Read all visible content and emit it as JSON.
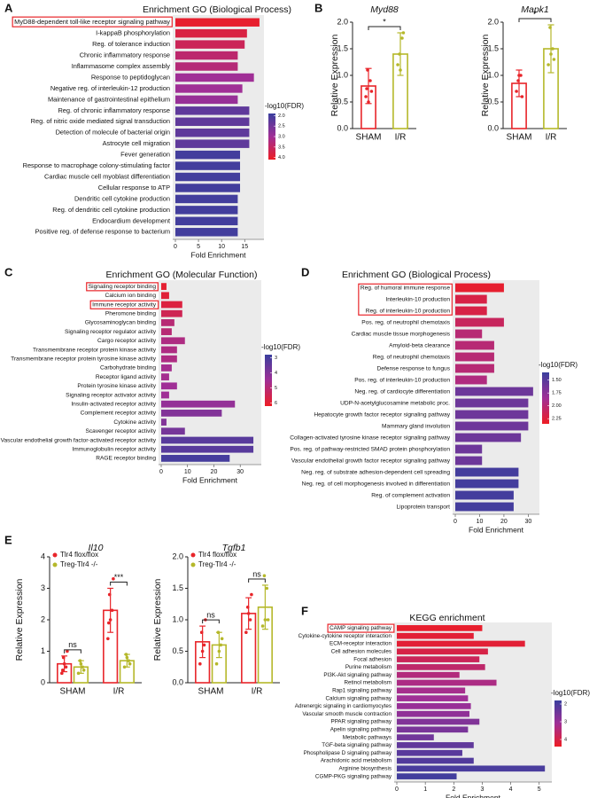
{
  "chart_data": [
    {
      "type": "hbar",
      "panel": "A",
      "title": "Enrichment GO (Biological Process)",
      "categories": [
        "MyD88-dependent toll-like receptor signaling pathway",
        "I-kappaB phosphorylation",
        "Reg. of tolerance induction",
        "Chronic inflammatory response",
        "Inflammasome complex assembly",
        "Response to peptidoglycan",
        "Negative reg. of interleukin-12 production",
        "Maintenance of gastrointestinal epithelium",
        "Reg. of chronic inflammatory response",
        "Reg. of nitric oxide mediated signal transduction",
        "Detection of molecule of bacterial origin",
        "Astrocyte cell migration",
        "Fever generation",
        "Response to macrophage colony-stimulating factor",
        "Cardiac muscle cell myoblast differentiation",
        "Cellular response to ATP",
        "Dendritic cell cytokine production",
        "Reg. of dendritic cell cytokine production",
        "Endocardium development",
        "Positive reg. of defense response to bacterium"
      ],
      "values": [
        18.2,
        15.5,
        15,
        13.5,
        13.5,
        17,
        14.5,
        13.5,
        16,
        16,
        16,
        16,
        14,
        14,
        14,
        14,
        13.5,
        13.5,
        13.5,
        13.5
      ],
      "color_values": [
        4.0,
        3.8,
        3.6,
        3.4,
        3.3,
        3.0,
        3.0,
        2.9,
        2.3,
        2.3,
        2.3,
        2.3,
        2.0,
        2.0,
        2.0,
        2.0,
        2.0,
        2.0,
        2.0,
        2.0
      ],
      "xlim": [
        0,
        18.6
      ],
      "xticks": [
        0,
        5,
        10,
        15
      ],
      "xlabel": "Fold Enrichment",
      "colorscale": [
        "#3a3f9e",
        "#a02f96",
        "#ee1d24"
      ],
      "colorbar": {
        "title": "-log10(FDR)",
        "lim": [
          1.9,
          4.1
        ],
        "ticks": [
          {
            "value": 2,
            "label": "2.0"
          },
          {
            "value": 2.5,
            "label": "2.5"
          },
          {
            "value": 3,
            "label": "3.0"
          },
          {
            "value": 3.5,
            "label": "3.5"
          },
          {
            "value": 4,
            "label": "4.0"
          }
        ]
      },
      "highlight": [
        0
      ]
    },
    {
      "type": "bar",
      "panel": "B",
      "title": "Myd88",
      "ylabel": "Relative Expression",
      "categories": [
        "SHAM",
        "I/R"
      ],
      "values": [
        0.8,
        1.4
      ],
      "errors": [
        0.33,
        0.4
      ],
      "points": [
        [
          0.6,
          0.9,
          1.1,
          0.7,
          0.5,
          0.75
        ],
        [
          1.2,
          1.7,
          1.4,
          1.8,
          1.1
        ]
      ],
      "colors": [
        "#e8252a",
        "#b5b82a"
      ],
      "ylim": [
        0,
        2
      ],
      "yticks": [
        {
          "value": 0,
          "label": "0.0"
        },
        {
          "value": 0.5,
          "label": "0.5"
        },
        {
          "value": 1,
          "label": "1.0"
        },
        {
          "value": 1.5,
          "label": "1.5"
        },
        {
          "value": 2,
          "label": "2.0"
        }
      ],
      "annotations": [
        {
          "label": "*",
          "between": [
            0,
            1
          ]
        }
      ]
    },
    {
      "type": "bar",
      "title": "Mapk1",
      "ylabel": "Relative Expression",
      "categories": [
        "SHAM",
        "I/R"
      ],
      "values": [
        0.85,
        1.5
      ],
      "errors": [
        0.25,
        0.45
      ],
      "points": [
        [
          0.7,
          1.0,
          0.9,
          0.6,
          1.0
        ],
        [
          1.2,
          1.5,
          1.9,
          1.3,
          1.4
        ]
      ],
      "colors": [
        "#e8252a",
        "#b5b82a"
      ],
      "ylim": [
        0,
        2
      ],
      "yticks": [
        {
          "value": 0,
          "label": "0.0"
        },
        {
          "value": 0.5,
          "label": "0.5"
        },
        {
          "value": 1,
          "label": "1.0"
        },
        {
          "value": 1.5,
          "label": "1.5"
        },
        {
          "value": 2,
          "label": "2.0"
        }
      ],
      "annotations": [
        {
          "label": "*",
          "between": [
            0,
            1
          ]
        }
      ]
    },
    {
      "type": "hbar",
      "panel": "C",
      "title": "Enrichment GO (Molecular Function)",
      "categories": [
        "Signaling receptor binding",
        "Calcium ion binding",
        "Immune receptor activity",
        "Pheromone binding",
        "Glycosaminoglycan binding",
        "Signaling receptor regulator activity",
        "Cargo receptor activity",
        "Transmembrane receptor protein kinase activity",
        "Transmembrane receptor protein tyrosine kinase activity",
        "Carbohydrate binding",
        "Receptor ligand activity",
        "Protein tyrosine kinase activity",
        "Signaling receptor activator activity",
        "Insulin-activated receptor activity",
        "Complement receptor activity",
        "Cytokine activity",
        "Scavenger receptor activity",
        "Vascular endothelial growth factor-activated receptor activity",
        "Immunoglobulin receptor activity",
        "RAGE receptor binding"
      ],
      "values": [
        2,
        3,
        8,
        8,
        5,
        4,
        9,
        6,
        6,
        4,
        3,
        6,
        3,
        28,
        23,
        2,
        9,
        35,
        35,
        26
      ],
      "color_values": [
        6.0,
        5.9,
        5.8,
        5.5,
        5.0,
        5.0,
        4.8,
        4.8,
        4.8,
        4.6,
        4.6,
        4.5,
        4.5,
        4.3,
        4.0,
        4.0,
        3.8,
        3.3,
        3.3,
        3.0
      ],
      "xlim": [
        0,
        37
      ],
      "xticks": [
        0,
        10,
        20,
        30
      ],
      "xlabel": "Fold Enrichment",
      "colorscale": [
        "#3a3f9e",
        "#a02f96",
        "#ee1d24"
      ],
      "colorbar": {
        "title": "-log10(FDR)",
        "lim": [
          2.8,
          6.2
        ],
        "ticks": [
          3,
          4,
          5,
          6
        ]
      },
      "highlight": [
        0,
        2
      ]
    },
    {
      "type": "hbar",
      "panel": "D",
      "title": "Enrichment GO (Biological Process)",
      "categories": [
        "Reg. of humoral immune response",
        "Interleukin-10 production",
        "Reg. of interleukin-10 production",
        "Pos. reg. of neutrophil chemotaxis",
        "Cardiac muscle tissue morphogenesis",
        "Amyloid-beta clearance",
        "Reg. of neutrophil chemotaxis",
        "Defense response to fungus",
        "Pos. reg. of interleukin-10 production",
        "Neg. reg. of cardiocyte differentiation",
        "UDP-N-acetylglucosamine metabolic proc.",
        "Hepatocyte growth factor receptor signaling pathway",
        "Mammary gland involution",
        "Collagen-activated tyrosine kinase receptor signaling pathway",
        "Pos. reg. of pathway-restricted SMAD protein phosphorylation",
        "Vascular endothelial growth factor receptor signaling pathway",
        "Neg. reg. of substrate adhesion-dependent cell spreading",
        "Neg. reg. of cell morphogenesis involved in differentiation",
        "Reg. of complement activation",
        "Lipoprotein transport"
      ],
      "values": [
        20,
        13,
        13,
        20,
        11,
        16,
        16,
        16,
        13,
        32,
        30,
        30,
        30,
        27,
        11,
        11,
        26,
        26,
        24,
        24
      ],
      "color_values": [
        2.3,
        2.2,
        2.2,
        2.1,
        2.0,
        2.0,
        2.0,
        2.0,
        1.95,
        1.6,
        1.6,
        1.6,
        1.6,
        1.6,
        1.6,
        1.6,
        1.4,
        1.4,
        1.4,
        1.4
      ],
      "xlim": [
        0,
        33.5
      ],
      "xticks": [
        0,
        10,
        20,
        30
      ],
      "xlabel": "Fold Enrichment",
      "colorscale": [
        "#3a3f9e",
        "#a02f96",
        "#ee1d24"
      ],
      "colorbar": {
        "title": "-log10(FDR)",
        "lim": [
          1.35,
          2.35
        ],
        "ticks": [
          {
            "value": 1.5,
            "label": "1.50"
          },
          {
            "value": 1.75,
            "label": "1.75"
          },
          {
            "value": 2,
            "label": "2.00"
          },
          {
            "value": 2.25,
            "label": "2.25"
          }
        ]
      },
      "highlight": [
        0,
        1,
        2
      ]
    },
    {
      "type": "bar",
      "panel": "E",
      "title": "Il10",
      "ylabel": "Relative Expression",
      "categories": [
        "SHAM",
        "I/R"
      ],
      "series": [
        {
          "name": "Tlr4 flox/flox",
          "color": "#e8252a",
          "values": [
            0.6,
            2.3
          ],
          "errors": [
            0.25,
            0.7
          ],
          "points": [
            [
              0.3,
              0.5,
              0.8,
              1.0,
              0.6,
              0.4
            ],
            [
              1.4,
              2.3,
              2.8,
              3.3,
              2.0,
              1.9
            ]
          ]
        },
        {
          "name": "Treg-Tlr4 -/-",
          "color": "#b5b82a",
          "values": [
            0.5,
            0.7
          ],
          "errors": [
            0.2,
            0.2
          ],
          "points": [
            [
              0.3,
              0.5,
              0.7,
              0.4,
              0.6
            ],
            [
              0.5,
              0.7,
              0.9,
              0.6,
              0.8
            ]
          ]
        }
      ],
      "ylim": [
        0,
        4
      ],
      "yticks": [
        0,
        1,
        2,
        3,
        4
      ],
      "annotations": [
        {
          "label": "ns",
          "category": 0
        },
        {
          "label": "***",
          "category": 1
        }
      ]
    },
    {
      "type": "bar",
      "title": "Tgfb1",
      "ylabel": "Relative Expression",
      "categories": [
        "SHAM",
        "I/R"
      ],
      "series": [
        {
          "name": "Tlr4 flox/flox",
          "color": "#e8252a",
          "values": [
            0.65,
            1.1
          ],
          "errors": [
            0.25,
            0.25
          ],
          "points": [
            [
              0.3,
              0.6,
              0.8,
              1.0,
              0.5
            ],
            [
              0.8,
              1.0,
              1.2,
              1.4,
              1.1
            ]
          ]
        },
        {
          "name": "Treg-Tlr4 -/-",
          "color": "#b5b82a",
          "values": [
            0.6,
            1.2
          ],
          "errors": [
            0.2,
            0.35
          ],
          "points": [
            [
              0.3,
              0.6,
              0.8,
              0.7,
              0.5
            ],
            [
              0.9,
              1.5,
              1.7,
              1.0,
              1.0
            ]
          ]
        }
      ],
      "ylim": [
        0,
        2
      ],
      "yticks": [
        {
          "value": 0,
          "label": "0.0"
        },
        {
          "value": 0.5,
          "label": "0.5"
        },
        {
          "value": 1,
          "label": "1.0"
        },
        {
          "value": 1.5,
          "label": "1.5"
        },
        {
          "value": 2,
          "label": "2.0"
        }
      ],
      "annotations": [
        {
          "label": "ns",
          "category": 0
        },
        {
          "label": "ns",
          "category": 1
        }
      ]
    },
    {
      "type": "hbar",
      "panel": "F",
      "title": "KEGG enrichment",
      "categories": [
        "CAMP signaling pathway",
        "Cytokine-cytokine receptor interaction",
        "ECM-receptor interaction",
        "Cell adhesion molecules",
        "Focal adhesion",
        "Purine metabolism",
        "PI3K-Akt signaling pathway",
        "Retinol metabolism",
        "Rap1 signaling pathway",
        "Calcium signaling pathway",
        "Adrenergic signaling in cardiomyocytes",
        "Vascular smooth muscle contraction",
        "PPAR signaling pathway",
        "Apelin signaling pathway",
        "Metabolic pathways",
        "TGF-beta signaling pathway",
        "Phospholipase D signaling pathway",
        "Arachidonic acid metabolism",
        "Arginine biosynthesis",
        "CGMP-PKG signaling pathway"
      ],
      "values": [
        3.0,
        2.7,
        4.5,
        3.2,
        2.9,
        3.1,
        2.2,
        3.5,
        2.4,
        2.5,
        2.6,
        2.55,
        2.9,
        2.5,
        1.3,
        2.7,
        2.3,
        2.7,
        5.2,
        2.1
      ],
      "color_values": [
        4.3,
        4.2,
        4.2,
        4.0,
        3.8,
        3.6,
        3.4,
        3.3,
        3.2,
        3.1,
        3.0,
        2.9,
        2.7,
        2.6,
        2.5,
        2.3,
        2.2,
        2.1,
        2.0,
        1.9
      ],
      "xlim": [
        0,
        5.35
      ],
      "xticks": [
        0,
        1,
        2,
        3,
        4,
        5
      ],
      "xlabel": "Fold Enrichment",
      "colorscale": [
        "#3a3f9e",
        "#a02f96",
        "#ee1d24"
      ],
      "colorbar": {
        "title": "-log10(FDR)",
        "lim": [
          1.8,
          4.4
        ],
        "ticks": [
          2,
          3,
          4
        ]
      },
      "highlight": [
        0
      ]
    }
  ]
}
